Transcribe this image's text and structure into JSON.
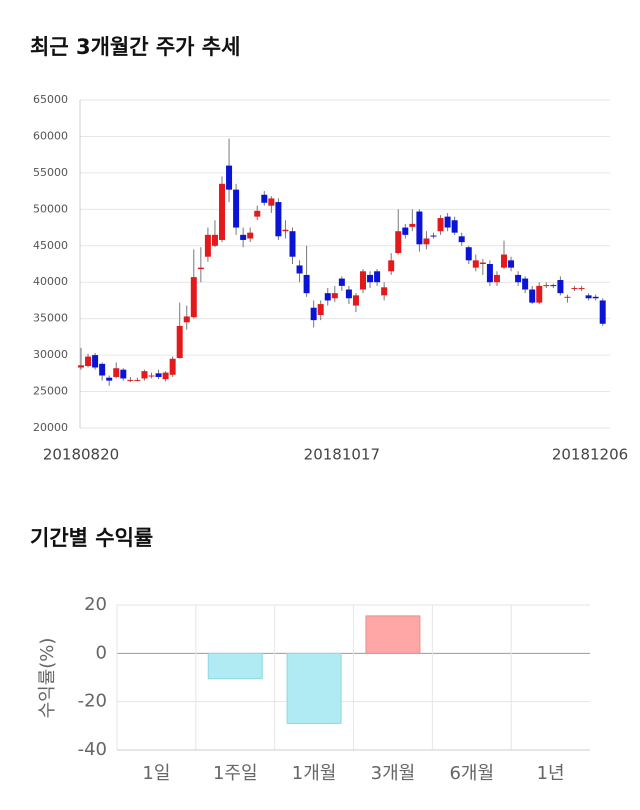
{
  "chart_data": [
    {
      "type": "candlestick",
      "title": "최근 3개월간 주가 추세",
      "categories": [
        "20180820",
        null,
        null,
        null,
        null,
        null,
        null,
        null,
        null,
        null,
        null,
        null,
        null,
        null,
        null,
        null,
        null,
        null,
        null,
        null,
        null,
        null,
        null,
        null,
        null,
        null,
        null,
        null,
        null,
        null,
        null,
        null,
        null,
        null,
        null,
        null,
        null,
        "20181017",
        null,
        null,
        null,
        null,
        null,
        null,
        null,
        null,
        null,
        null,
        null,
        null,
        null,
        null,
        null,
        null,
        null,
        null,
        null,
        null,
        null,
        null,
        null,
        null,
        null,
        null,
        null,
        null,
        null,
        null,
        null,
        null,
        null,
        null,
        null,
        "20181206",
        null
      ],
      "open": [
        28300,
        28500,
        30000,
        28800,
        26900,
        27000,
        28000,
        26600,
        26600,
        26800,
        27200,
        27500,
        26700,
        27300,
        29600,
        34500,
        35200,
        41800,
        43500,
        45000,
        45800,
        56000,
        52700,
        46500,
        46000,
        49000,
        52000,
        50500,
        51000,
        47000,
        47000,
        42300,
        41000,
        36500,
        35500,
        38500,
        37800,
        40500,
        39000,
        36800,
        39000,
        41000,
        41500,
        38200,
        41500,
        44000,
        47500,
        47600,
        49700,
        45200,
        46400,
        47000,
        49000,
        48500,
        46300,
        44800,
        42000,
        42500,
        42500,
        40000,
        42000,
        43000,
        41000,
        40500,
        39000,
        37200,
        39500,
        39600,
        40300,
        38000,
        39200,
        39200,
        38200,
        38000,
        37500
      ],
      "high": [
        31000,
        30200,
        30300,
        29000,
        27200,
        29000,
        28200,
        27000,
        26900,
        28000,
        27600,
        28000,
        27800,
        29800,
        37200,
        36800,
        44500,
        44800,
        47500,
        48500,
        54500,
        59700,
        53500,
        47500,
        47500,
        50500,
        52500,
        51800,
        51500,
        48500,
        47500,
        43000,
        45000,
        37500,
        37500,
        39200,
        39500,
        40800,
        39500,
        38500,
        41800,
        41500,
        41800,
        40000,
        44000,
        50000,
        48000,
        50000,
        50000,
        47000,
        46800,
        49200,
        49500,
        49000,
        46800,
        45000,
        43800,
        43200,
        43000,
        41500,
        45700,
        43500,
        41500,
        40800,
        39500,
        40000,
        40000,
        39800,
        40800,
        38300,
        39500,
        39500,
        38500,
        38300,
        37800
      ],
      "low": [
        28000,
        28300,
        28000,
        26500,
        25800,
        26800,
        26500,
        26300,
        26400,
        26500,
        26800,
        26700,
        26400,
        27000,
        29500,
        33500,
        35000,
        40000,
        42800,
        44800,
        45500,
        51000,
        46500,
        44800,
        45500,
        48500,
        50500,
        49500,
        45800,
        46000,
        42500,
        40000,
        38000,
        33800,
        34800,
        36800,
        37300,
        38800,
        37000,
        35900,
        38500,
        39200,
        39500,
        37500,
        41000,
        43800,
        46000,
        47000,
        44200,
        44500,
        46000,
        46500,
        47000,
        46500,
        45000,
        42500,
        41500,
        41000,
        39500,
        39500,
        41800,
        41500,
        39500,
        38500,
        37000,
        37000,
        39200,
        39200,
        38200,
        37200,
        38800,
        38800,
        37500,
        37500,
        34000
      ],
      "close": [
        28600,
        29800,
        28300,
        27200,
        26500,
        28200,
        26800,
        26600,
        26600,
        27800,
        27200,
        27000,
        27600,
        29500,
        34000,
        35300,
        40700,
        42000,
        46500,
        46500,
        53500,
        52700,
        47500,
        45800,
        46800,
        49800,
        50900,
        51500,
        46300,
        47200,
        43500,
        41200,
        38500,
        34800,
        37000,
        37500,
        38500,
        39500,
        37800,
        38200,
        41500,
        40000,
        40000,
        39300,
        43000,
        47000,
        46500,
        48000,
        45200,
        46000,
        46300,
        48800,
        47500,
        46800,
        45500,
        43000,
        43000,
        42700,
        40000,
        41000,
        43800,
        42000,
        40000,
        39000,
        37200,
        39500,
        39600,
        39500,
        38500,
        38000,
        39200,
        39200,
        37800,
        37800,
        34300
      ],
      "up_color": "#e3191c",
      "down_color": "#0a14d6",
      "ylim": [
        20000,
        65000
      ],
      "yticks": [
        65000,
        60000,
        55000,
        50000,
        45000,
        40000,
        35000,
        30000,
        25000,
        20000
      ],
      "grid": true
    },
    {
      "type": "bar",
      "title": "기간별 수익률",
      "ylabel": "수익률(%)",
      "categories": [
        "1일",
        "1주일",
        "1개월",
        "3개월",
        "6개월",
        "1년"
      ],
      "values": [
        null,
        -10.5,
        -29,
        15.5,
        null,
        null
      ],
      "positive_color": "#ffa6a6",
      "negative_color": "#b0ebf3",
      "ylim": [
        -40,
        20
      ],
      "yticks": [
        20,
        0,
        -20,
        -40
      ],
      "grid": true
    }
  ]
}
